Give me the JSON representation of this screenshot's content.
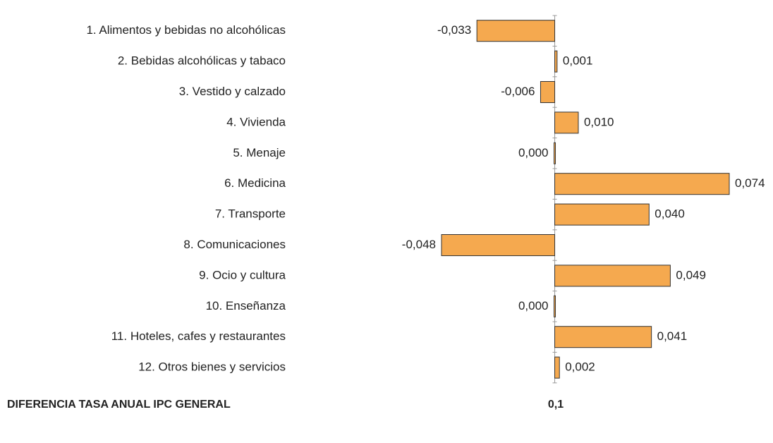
{
  "chart_data": {
    "type": "bar",
    "orientation": "horizontal",
    "categories": [
      "1. Alimentos y bebidas no alcohólicas",
      "2. Bebidas alcohólicas y tabaco",
      "3. Vestido y calzado",
      "4. Vivienda",
      "5. Menaje",
      "6. Medicina",
      "7. Transporte",
      "8. Comunicaciones",
      "9. Ocio y cultura",
      "10. Enseñanza",
      "11. Hoteles, cafes y restaurantes",
      "12. Otros bienes y servicios"
    ],
    "values": [
      -0.033,
      0.001,
      -0.006,
      0.01,
      0.0,
      0.074,
      0.04,
      -0.048,
      0.049,
      0.0,
      0.041,
      0.002
    ],
    "value_labels": [
      "-0,033",
      "0,001",
      "-0,006",
      "0,010",
      "0,000",
      "0,074",
      "0,040",
      "-0,048",
      "0,049",
      "0,000",
      "0,041",
      "0,002"
    ],
    "color": "#f5a94f",
    "summary": {
      "label": "DIFERENCIA TASA ANUAL IPC GENERAL",
      "value": 0.1,
      "value_label": "0,1"
    }
  }
}
